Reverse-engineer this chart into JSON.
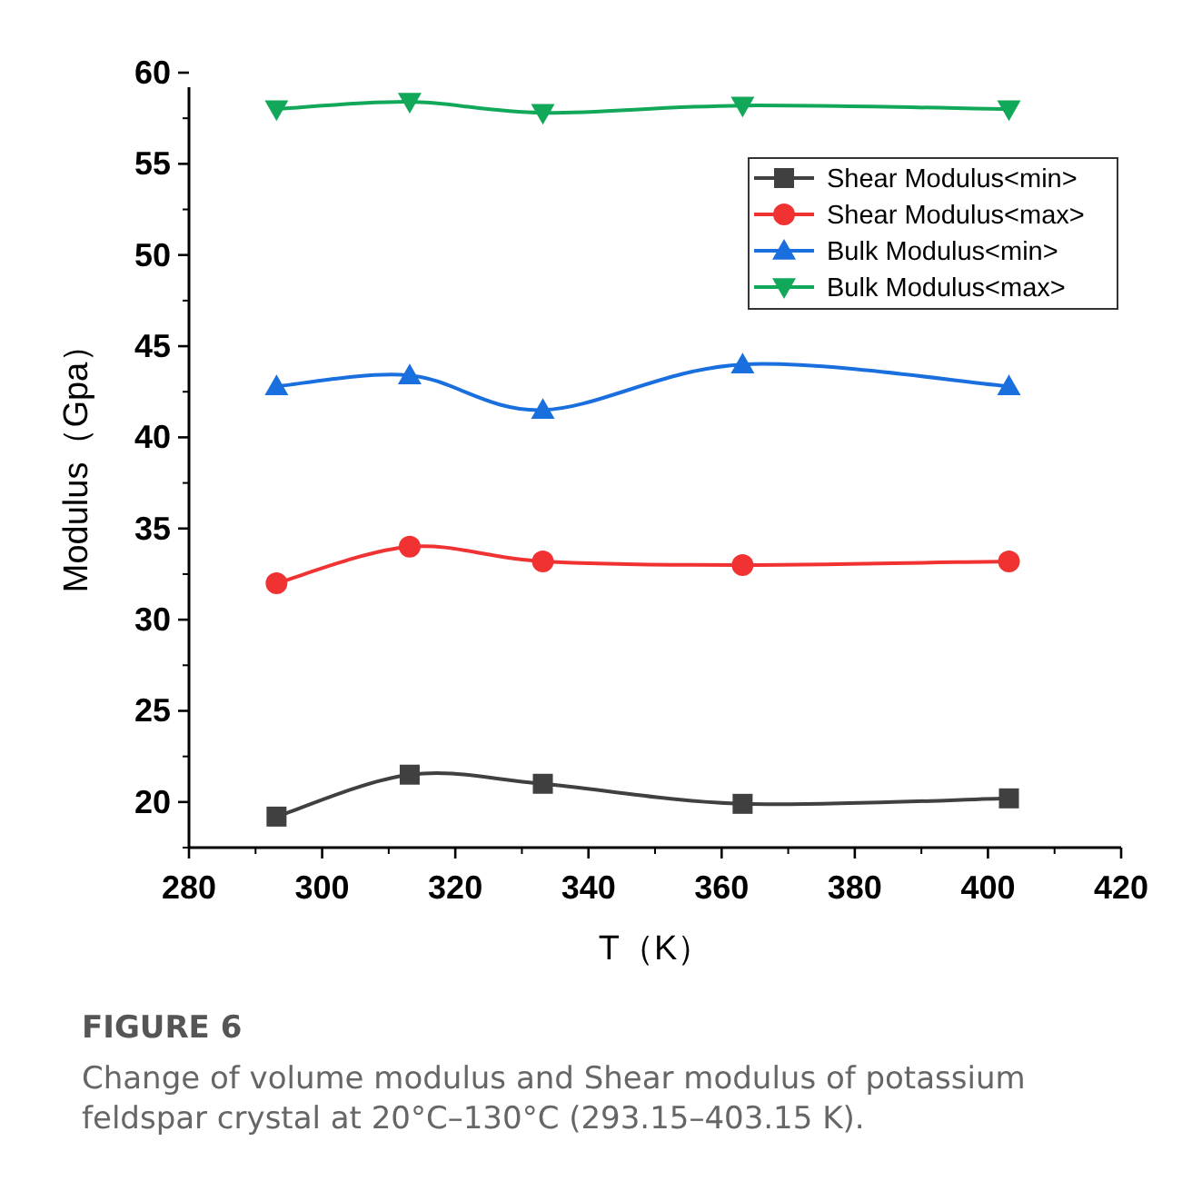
{
  "chart_data": {
    "type": "line",
    "xlabel": "T（K）",
    "ylabel": "Modulus（Gpa）",
    "annotations": [
      "FIGURE 6",
      "Change of volume modulus and Shear modulus of potassium feldspar crystal at 20°C–130°C (293.15–403.15 K)."
    ],
    "x": [
      293.15,
      313.15,
      333.15,
      363.15,
      403.15
    ],
    "series": [
      {
        "name": "Shear Modulus<min>",
        "color": "#404040",
        "marker": "square",
        "values": [
          19.2,
          21.5,
          21.0,
          19.9,
          20.2
        ]
      },
      {
        "name": "Shear Modulus<max>",
        "color": "#f03232",
        "marker": "circle",
        "values": [
          32.0,
          34.0,
          33.2,
          33.0,
          33.2
        ]
      },
      {
        "name": "Bulk Modulus<min>",
        "color": "#1a6fdf",
        "marker": "triangle",
        "values": [
          42.8,
          43.4,
          41.5,
          44.0,
          42.8
        ]
      },
      {
        "name": "Bulk Modulus<max>",
        "color": "#12a85a",
        "marker": "triangle_down",
        "values": [
          58.0,
          58.4,
          57.8,
          58.2,
          58.0
        ]
      }
    ],
    "xlim": [
      280,
      420
    ],
    "xticks": [
      280,
      300,
      320,
      340,
      360,
      380,
      400,
      420
    ],
    "ylim": [
      17.5,
      60
    ],
    "yticks": [
      20,
      25,
      30,
      35,
      40,
      45,
      50,
      55,
      60
    ],
    "grid": false,
    "legend": "top right"
  }
}
